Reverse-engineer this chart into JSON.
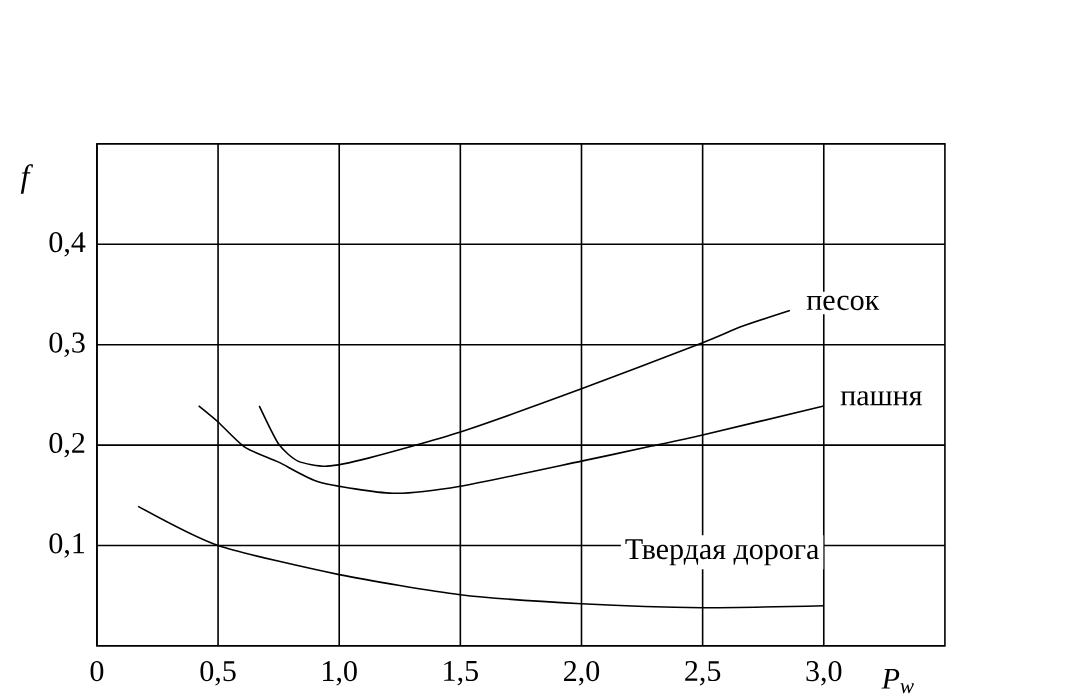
{
  "chart_data": {
    "type": "line",
    "xlabel": "P$_{w}$",
    "ylabel": "f",
    "xlim": [
      0,
      3.5
    ],
    "ylim": [
      0,
      0.5
    ],
    "xticks": [
      0,
      {
        "value": 0.5,
        "label": "0,5"
      },
      {
        "value": 1.0,
        "label": "1,0"
      },
      {
        "value": 1.5,
        "label": "1,5"
      },
      {
        "value": 2.0,
        "label": "2,0"
      },
      {
        "value": 2.5,
        "label": "2,5"
      },
      {
        "value": 3.0,
        "label": "3,0"
      }
    ],
    "yticks": [
      {
        "value": 0.1,
        "label": "0,1"
      },
      {
        "value": 0.2,
        "label": "0,2"
      },
      {
        "value": 0.3,
        "label": "0,3"
      },
      {
        "value": 0.4,
        "label": "0,4"
      }
    ],
    "grid": true,
    "legend": false,
    "marker": "none",
    "line_style": "solid",
    "series": [
      {
        "name": "песок",
        "color": "#000000",
        "x": [
          0.67,
          0.75,
          0.83,
          0.95,
          1.12,
          1.5,
          2.0,
          2.5,
          2.66,
          2.86
        ],
        "values": [
          0.239,
          0.201,
          0.184,
          0.179,
          0.187,
          0.213,
          0.256,
          0.302,
          0.318,
          0.334
        ]
      },
      {
        "name": "пашня",
        "color": "#000000",
        "x": [
          0.42,
          0.5,
          0.61,
          0.75,
          0.92,
          1.22,
          1.5,
          2.0,
          2.29,
          2.5,
          3.0
        ],
        "values": [
          0.239,
          0.223,
          0.198,
          0.183,
          0.163,
          0.152,
          0.159,
          0.184,
          0.199,
          0.21,
          0.239
        ]
      },
      {
        "name": "Твердая дорога",
        "color": "#000000",
        "x": [
          0.17,
          0.5,
          1.0,
          1.5,
          2.0,
          2.5,
          3.0
        ],
        "values": [
          0.139,
          0.1,
          0.071,
          0.051,
          0.042,
          0.038,
          0.04
        ]
      }
    ]
  }
}
